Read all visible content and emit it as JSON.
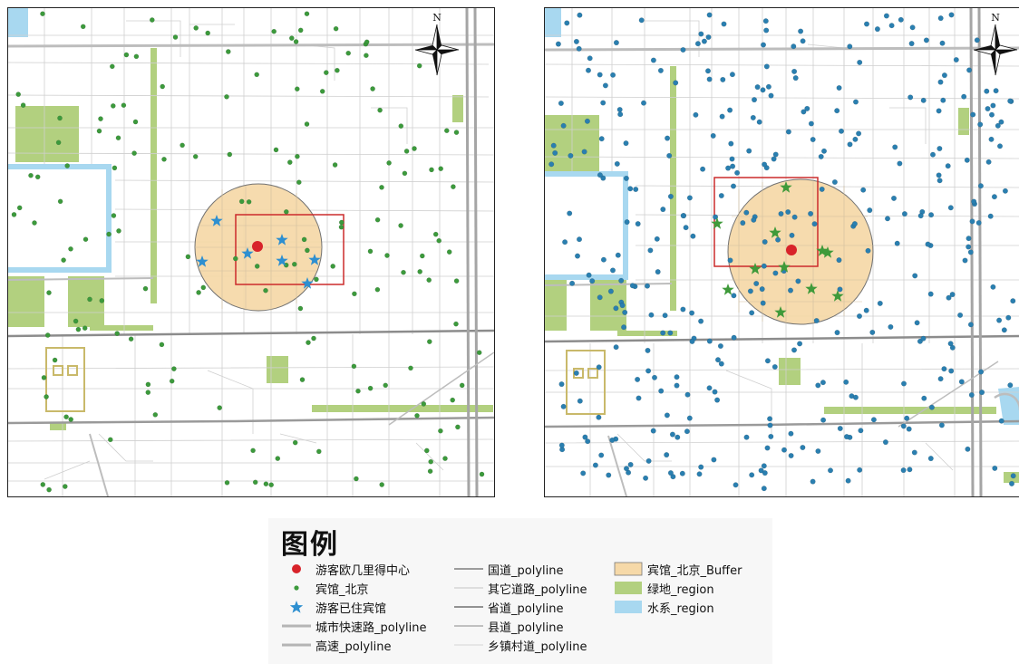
{
  "maps": {
    "left": {
      "north_label": "N",
      "colors": {
        "hotel_dot": "#3c9a3c",
        "stayed_star": "#2e8fd0",
        "center": "#d8232a",
        "buffer": "#f6d9a8",
        "buffer_stroke": "#666666",
        "window": "#cc2b2b",
        "green": "#b2d07f",
        "water": "#a8d8f0"
      }
    },
    "right": {
      "north_label": "N",
      "colors": {
        "hotel_dot": "#2a7fb0",
        "stayed_star": "#3f9a3a",
        "center": "#d8232a",
        "buffer": "#f6d9a8",
        "buffer_stroke": "#666666",
        "window": "#cc2b2b",
        "green": "#b2d07f",
        "water": "#a8d8f0"
      }
    }
  },
  "legend": {
    "title": "图例",
    "items": [
      {
        "symbol": "red-dot-icon",
        "label": "游客欧几里得中心"
      },
      {
        "symbol": "green-dot-icon",
        "label": "宾馆_北京"
      },
      {
        "symbol": "blue-star-icon",
        "label": "游客已住宾馆"
      },
      {
        "symbol": "thick-gray-line-icon",
        "label": "城市快速路_polyline"
      },
      {
        "symbol": "thick-gray-line-icon",
        "label": "高速_polyline"
      },
      {
        "symbol": "line-icon",
        "label": "国道_polyline"
      },
      {
        "symbol": "thin-line-icon",
        "label": "其它道路_polyline"
      },
      {
        "symbol": "line-icon",
        "label": "省道_polyline"
      },
      {
        "symbol": "line-icon",
        "label": "县道_polyline"
      },
      {
        "symbol": "thin-line-icon",
        "label": "乡镇村道_polyline"
      },
      {
        "symbol": "tan-box-icon",
        "label": "宾馆_北京_Buffer"
      },
      {
        "symbol": "green-box-icon",
        "label": "绿地_region"
      },
      {
        "symbol": "blue-box-icon",
        "label": "水系_region"
      }
    ]
  }
}
